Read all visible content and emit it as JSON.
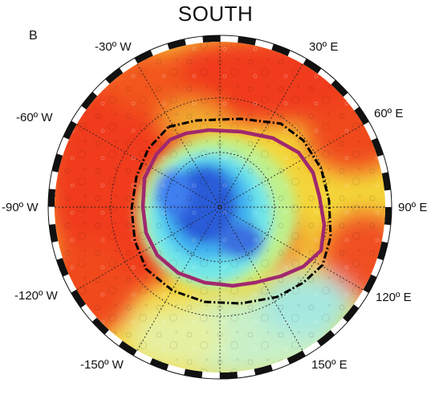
{
  "title": "SOUTH",
  "panel_label": "B",
  "longitude_labels": {
    "m30": "-30º W",
    "p30": "30º E",
    "m60": "-60º W",
    "p60": "60º E",
    "m90": "-90º W",
    "p90": "90º E",
    "m120": "-120º W",
    "p120": "120º E",
    "m150": "-150º W",
    "p150": "150º E"
  },
  "colors": {
    "magenta_contour": "#a0286e",
    "black_contour": "#000000",
    "low": "#2a5bd8",
    "mid_low": "#3fe0f0",
    "mid": "#f4f04a",
    "high": "#f03a1a"
  }
}
